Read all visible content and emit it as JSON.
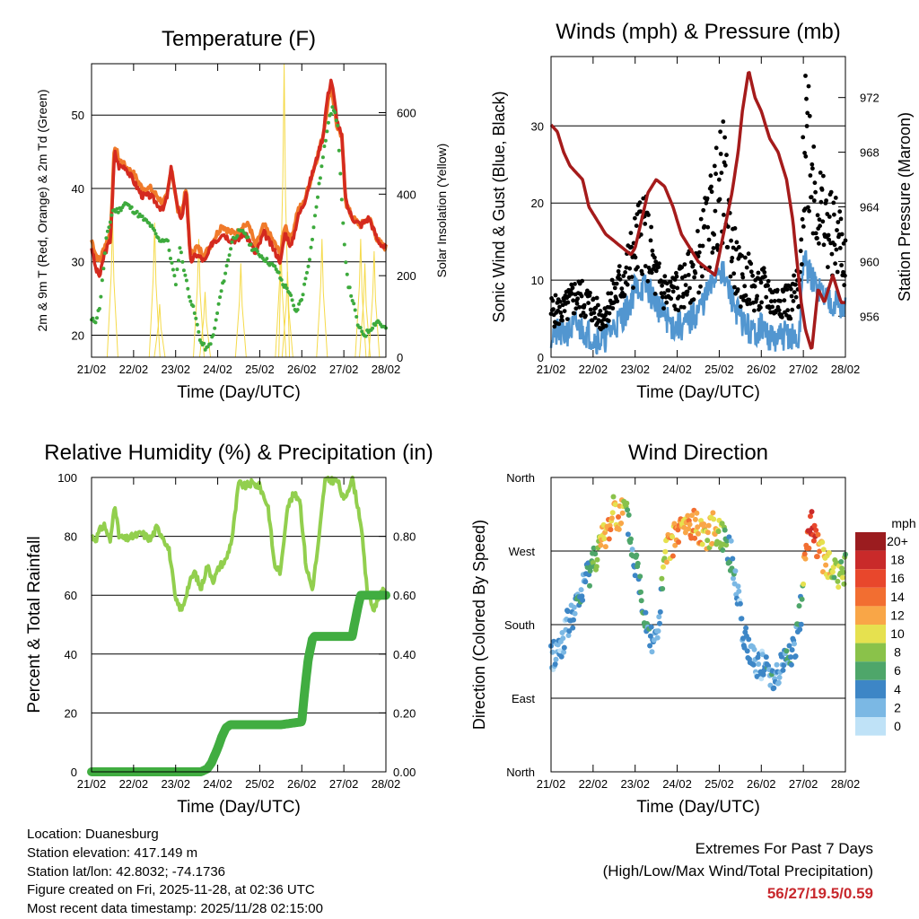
{
  "colors": {
    "temp_2m": "#d42a1f",
    "temp_9m": "#f07a2a",
    "dewpoint": "#3daa3d",
    "solar": "#f5da4a",
    "wind": "#5296d0",
    "gust": "#000000",
    "pressure": "#a51b1b",
    "rh": "#92cf4e",
    "precip": "#41ad41",
    "extremes": "#c8282d"
  },
  "time_axis": {
    "labels": [
      "21/02",
      "22/02",
      "23/02",
      "24/02",
      "25/02",
      "26/02",
      "27/02",
      "28/02"
    ],
    "xlabel": "Time (Day/UTC)"
  },
  "chart_data": [
    {
      "id": "temperature",
      "type": "line",
      "title": "Temperature (F)",
      "xlabel": "Time (Day/UTC)",
      "ylabel": "2m & 9m T (Red, Orange) & 2m Td (Green)",
      "ylim": [
        17,
        57
      ],
      "yticks": [
        20,
        30,
        40,
        50
      ],
      "y2label": "Solar Insolation (Yellow)",
      "y2lim": [
        0,
        720
      ],
      "y2ticks": [
        0,
        200,
        400,
        600
      ],
      "x_range_days": [
        0,
        7
      ],
      "series": [
        {
          "name": "2m T",
          "color_key": "temp_2m",
          "x": [
            0,
            0.1,
            0.2,
            0.3,
            0.45,
            0.55,
            0.65,
            0.8,
            1.0,
            1.2,
            1.4,
            1.55,
            1.7,
            1.8,
            1.9,
            2.05,
            2.15,
            2.25,
            2.35,
            2.5,
            2.7,
            2.9,
            3.0,
            3.1,
            3.3,
            3.5,
            3.6,
            3.75,
            3.9,
            4.1,
            4.3,
            4.5,
            4.6,
            4.75,
            4.9,
            5.05,
            5.2,
            5.4,
            5.5,
            5.6,
            5.7,
            5.85,
            5.95,
            6.05,
            6.2,
            6.4,
            6.6,
            6.8,
            6.95,
            7.0
          ],
          "y": [
            32,
            29,
            28,
            31,
            33,
            45,
            43,
            43,
            41,
            39,
            39,
            38,
            37,
            39,
            43,
            37,
            36,
            40,
            30,
            31,
            30,
            33,
            33,
            34,
            33,
            33,
            34,
            33,
            31,
            34,
            32,
            30,
            34,
            32,
            36,
            38,
            41,
            45,
            47,
            52,
            55,
            49,
            47,
            38,
            36,
            35,
            36,
            33,
            32,
            32
          ]
        },
        {
          "name": "9m T",
          "color_key": "temp_9m",
          "x": [
            0,
            0.1,
            0.2,
            0.3,
            0.45,
            0.55,
            0.65,
            0.8,
            1.0,
            1.2,
            1.4,
            1.55,
            1.7,
            1.8,
            1.9,
            2.05,
            2.15,
            2.25,
            2.35,
            2.5,
            2.7,
            2.9,
            3.0,
            3.1,
            3.3,
            3.5,
            3.6,
            3.75,
            3.9,
            4.1,
            4.3,
            4.5,
            4.6,
            4.75,
            4.9,
            5.05,
            5.2,
            5.4,
            5.5,
            5.6,
            5.7,
            5.85,
            5.95,
            6.05,
            6.2,
            6.4,
            6.6,
            6.8,
            6.95,
            7.0
          ],
          "y": [
            33,
            31,
            30,
            32,
            34,
            46,
            44,
            43,
            42,
            40,
            40,
            39,
            38,
            39,
            43,
            37,
            37,
            40,
            31,
            32,
            31,
            33,
            34,
            35,
            34,
            34,
            35,
            35,
            32,
            35,
            33,
            31,
            35,
            33,
            37,
            38,
            41,
            45,
            47,
            51,
            54,
            48,
            47,
            38,
            36,
            35,
            36,
            33,
            32,
            32
          ]
        },
        {
          "name": "2m Td",
          "color_key": "dewpoint",
          "x": [
            0,
            0.1,
            0.2,
            0.35,
            0.5,
            0.65,
            0.8,
            1.0,
            1.2,
            1.4,
            1.6,
            1.8,
            1.9,
            2.0,
            2.1,
            2.2,
            2.3,
            2.45,
            2.6,
            2.75,
            2.9,
            3.05,
            3.2,
            3.35,
            3.5,
            3.65,
            3.8,
            4.0,
            4.2,
            4.4,
            4.55,
            4.7,
            4.85,
            5.0,
            5.2,
            5.4,
            5.55,
            5.65,
            5.75,
            5.85,
            6.0,
            6.1,
            6.2,
            6.35,
            6.5,
            6.65,
            6.8,
            6.95
          ],
          "y": [
            22,
            22,
            24,
            33,
            37,
            37,
            38,
            37,
            36,
            35,
            33,
            33,
            30,
            27,
            32,
            29,
            26,
            23,
            19,
            18,
            20,
            25,
            29,
            33,
            34,
            34,
            32,
            31,
            30,
            29,
            27,
            26,
            23,
            25,
            31,
            40,
            46,
            50,
            51,
            49,
            33,
            27,
            25,
            21,
            20,
            21,
            22,
            21
          ]
        },
        {
          "name": "Solar",
          "color_key": "solar",
          "axis": "right",
          "peaks": [
            [
              0.5,
              340
            ],
            [
              1.5,
              330
            ],
            [
              1.62,
              130
            ],
            [
              2.55,
              290
            ],
            [
              2.7,
              160
            ],
            [
              3.55,
              230
            ],
            [
              4.5,
              300
            ],
            [
              4.58,
              720
            ],
            [
              4.66,
              210
            ],
            [
              5.48,
              290
            ],
            [
              6.4,
              290
            ],
            [
              6.5,
              230
            ],
            [
              6.72,
              260
            ]
          ]
        }
      ]
    },
    {
      "id": "winds",
      "type": "scatter",
      "title": "Winds (mph) & Pressure (mb)",
      "xlabel": "Time (Day/UTC)",
      "ylabel": "Sonic Wind & Gust (Blue, Black)",
      "ylim": [
        0,
        39
      ],
      "yticks": [
        0,
        10,
        20,
        30
      ],
      "y2label": "Station Pressure (Maroon)",
      "y2lim": [
        953,
        975
      ],
      "y2ticks": [
        956,
        960,
        964,
        968,
        972
      ],
      "x_range_days": [
        0,
        7
      ],
      "series": [
        {
          "name": "Wind",
          "color_key": "wind",
          "x": [
            0,
            0.3,
            0.6,
            0.9,
            1.2,
            1.5,
            1.8,
            2.0,
            2.3,
            2.6,
            2.9,
            3.2,
            3.5,
            3.8,
            4.0,
            4.2,
            4.5,
            4.8,
            5.0,
            5.3,
            5.6,
            5.9,
            6.0,
            6.2,
            6.5,
            6.8,
            7.0
          ],
          "y": [
            3,
            3,
            4,
            3,
            2,
            4,
            6,
            9,
            9,
            6,
            4,
            4,
            6,
            9,
            12,
            9,
            5,
            3,
            4,
            2,
            3,
            2,
            13,
            10,
            8,
            7,
            6
          ]
        },
        {
          "name": "Gust",
          "color_key": "gust",
          "x": [
            0,
            0.3,
            0.6,
            0.9,
            1.2,
            1.5,
            1.8,
            2.0,
            2.2,
            2.5,
            2.8,
            3.1,
            3.4,
            3.7,
            3.9,
            4.1,
            4.3,
            4.5,
            4.7,
            4.9,
            5.1,
            5.3,
            5.5,
            5.7,
            5.85,
            5.9,
            6.0,
            6.1,
            6.3,
            6.5,
            6.7,
            6.9,
            7.0
          ],
          "y": [
            6,
            6,
            8,
            7,
            5,
            8,
            11,
            14,
            17,
            10,
            8,
            9,
            11,
            16,
            20,
            23,
            14,
            10,
            10,
            8,
            9,
            7,
            8,
            7,
            9,
            6,
            23,
            30,
            21,
            17,
            16,
            15,
            12
          ]
        },
        {
          "name": "Pressure",
          "color_key": "pressure",
          "axis": "right",
          "x": [
            0,
            0.15,
            0.3,
            0.45,
            0.6,
            0.75,
            0.9,
            1.1,
            1.3,
            1.5,
            1.7,
            1.9,
            2.0,
            2.15,
            2.3,
            2.5,
            2.7,
            2.9,
            3.1,
            3.3,
            3.5,
            3.7,
            3.9,
            4.1,
            4.3,
            4.45,
            4.55,
            4.7,
            4.85,
            5.0,
            5.2,
            5.4,
            5.6,
            5.75,
            5.85,
            5.95,
            6.05,
            6.2,
            6.35,
            6.5,
            6.7,
            6.9,
            7.0
          ],
          "y": [
            970,
            969.5,
            968,
            967,
            966.5,
            966,
            964,
            963,
            962,
            961.5,
            961,
            960.5,
            961,
            963,
            965,
            966,
            965.5,
            964,
            962,
            961,
            960,
            959.5,
            959,
            962,
            965,
            968,
            971,
            974,
            972,
            971,
            969,
            968,
            966,
            963,
            960,
            957,
            955,
            953.5,
            958,
            957,
            959,
            957,
            957
          ]
        }
      ]
    },
    {
      "id": "humidity",
      "type": "line",
      "title": "Relative Humidity (%) & Precipitation (in)",
      "xlabel": "Time (Day/UTC)",
      "ylabel": "Percent & Total Rainfall",
      "ylim": [
        0,
        100
      ],
      "yticks": [
        0,
        20,
        40,
        60,
        80,
        100
      ],
      "y2lim": [
        0,
        1.0
      ],
      "y2ticks": [
        "0.00",
        "0.20",
        "0.40",
        "0.60",
        "0.80"
      ],
      "x_range_days": [
        0,
        7
      ],
      "series": [
        {
          "name": "RH",
          "color_key": "rh",
          "x": [
            0,
            0.1,
            0.2,
            0.3,
            0.45,
            0.55,
            0.65,
            0.8,
            1.0,
            1.2,
            1.4,
            1.55,
            1.7,
            1.85,
            2.0,
            2.15,
            2.3,
            2.45,
            2.6,
            2.75,
            2.9,
            3.05,
            3.2,
            3.35,
            3.5,
            3.65,
            3.8,
            4.0,
            4.2,
            4.35,
            4.5,
            4.65,
            4.8,
            4.95,
            5.1,
            5.25,
            5.4,
            5.55,
            5.7,
            5.85,
            6.0,
            6.2,
            6.4,
            6.55,
            6.7,
            6.85,
            7.0
          ],
          "y": [
            80,
            79,
            82,
            84,
            78,
            92,
            80,
            79,
            80,
            81,
            79,
            83,
            80,
            75,
            58,
            55,
            63,
            68,
            62,
            70,
            65,
            70,
            72,
            80,
            98,
            97,
            98,
            97,
            90,
            70,
            68,
            90,
            94,
            93,
            70,
            62,
            78,
            99,
            99,
            99,
            92,
            100,
            85,
            62,
            55,
            60,
            62
          ]
        },
        {
          "name": "Precip",
          "color_key": "precip",
          "axis": "right",
          "x": [
            0,
            1.0,
            2.0,
            2.6,
            2.75,
            2.85,
            3.0,
            3.1,
            3.2,
            3.3,
            3.5,
            4.0,
            4.5,
            5.0,
            5.05,
            5.15,
            5.25,
            5.3,
            5.6,
            6.0,
            6.2,
            6.25,
            6.35,
            6.4,
            7.0
          ],
          "y": [
            0,
            0,
            0,
            0,
            0.01,
            0.03,
            0.08,
            0.12,
            0.15,
            0.16,
            0.16,
            0.16,
            0.16,
            0.17,
            0.25,
            0.38,
            0.45,
            0.46,
            0.46,
            0.46,
            0.46,
            0.5,
            0.57,
            0.6,
            0.6
          ]
        }
      ]
    },
    {
      "id": "wind_direction",
      "type": "scatter",
      "title": "Wind Direction",
      "xlabel": "Time (Day/UTC)",
      "ylabel": "Direction (Colored By Speed)",
      "ylim": [
        0,
        360
      ],
      "ylabels": [
        "North",
        "East",
        "South",
        "West",
        "North"
      ],
      "yticks": [
        0,
        90,
        180,
        270,
        360
      ],
      "x_range_days": [
        0,
        7
      ],
      "colorbar": {
        "title": "mph",
        "labels": [
          "20+",
          "18",
          "16",
          "14",
          "12",
          "10",
          "8",
          "6",
          "4",
          "2",
          "0"
        ],
        "colors": [
          "#9b1c1f",
          "#c92a2a",
          "#e8472c",
          "#f26e31",
          "#f9a647",
          "#e6e14f",
          "#8ac24a",
          "#4ea66a",
          "#3d86c6",
          "#7bb8e4",
          "#bfe2f7"
        ]
      },
      "series": [
        {
          "name": "Direction",
          "x": [
            0,
            0.2,
            0.4,
            0.6,
            0.8,
            1.0,
            1.2,
            1.4,
            1.5,
            1.6,
            1.75,
            1.85,
            1.95,
            2.05,
            2.2,
            2.35,
            2.5,
            2.6,
            2.7,
            2.85,
            3.0,
            3.15,
            3.3,
            3.5,
            3.7,
            3.9,
            4.1,
            4.3,
            4.5,
            4.6,
            4.7,
            4.8,
            5.0,
            5.2,
            5.4,
            5.6,
            5.8,
            5.95,
            6.05,
            6.2,
            6.4,
            6.6,
            6.8,
            7.0
          ],
          "y": [
            140,
            150,
            180,
            200,
            230,
            260,
            280,
            300,
            330,
            310,
            320,
            300,
            260,
            250,
            200,
            170,
            160,
            200,
            260,
            280,
            290,
            300,
            300,
            300,
            290,
            300,
            290,
            260,
            200,
            160,
            150,
            140,
            130,
            120,
            120,
            140,
            150,
            200,
            280,
            300,
            270,
            250,
            240,
            250
          ],
          "speeds": [
            2,
            2,
            3,
            4,
            4,
            6,
            10,
            12,
            10,
            12,
            8,
            6,
            4,
            5,
            6,
            4,
            3,
            4,
            10,
            12,
            12,
            11,
            12,
            12,
            10,
            11,
            8,
            4,
            2,
            3,
            4,
            3,
            2,
            4,
            3,
            4,
            4,
            5,
            14,
            18,
            12,
            10,
            8,
            8
          ]
        }
      ]
    }
  ],
  "info": {
    "location": "Location: Duanesburg",
    "elevation": "Station elevation: 417.149 m",
    "latlon": "Station lat/lon: 42.8032; -74.1736",
    "created": "Figure created on Fri, 2025-11-28, at 02:36 UTC",
    "recent": "Most recent data timestamp: 2025/11/28 02:15:00"
  },
  "extremes": {
    "title": "Extremes For Past 7 Days",
    "subtitle": "(High/Low/Max Wind/Total Precipitation)",
    "value": "56/27/19.5/0.59"
  }
}
